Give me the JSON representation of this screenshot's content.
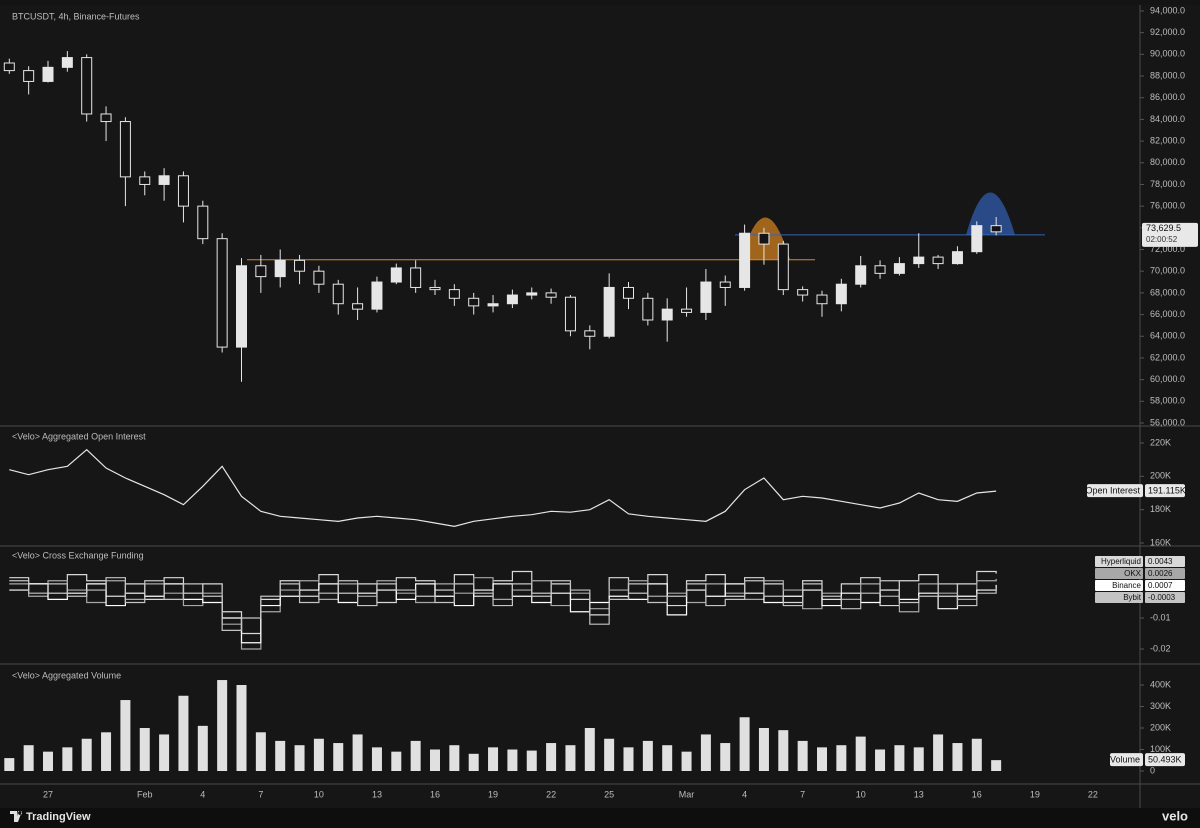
{
  "chart_data": [
    {
      "type": "candlestick",
      "title": "BTCUSDT, 4h, Binance-Futures",
      "categories": [
        null,
        null,
        "27",
        null,
        null,
        null,
        null,
        "Feb",
        null,
        null,
        "4",
        null,
        null,
        "7",
        null,
        null,
        "10",
        null,
        null,
        "13",
        null,
        null,
        "16",
        null,
        null,
        "19",
        null,
        null,
        "22",
        null,
        null,
        "25",
        null,
        null,
        null,
        "Mar",
        null,
        null,
        "4",
        null,
        null,
        "7",
        null,
        null,
        "10",
        null,
        null,
        "13",
        null,
        null,
        "16",
        null,
        null,
        "19",
        null,
        null,
        "22",
        null,
        null
      ],
      "open": [
        89200,
        88500,
        87500,
        88800,
        89700,
        84500,
        83800,
        78700,
        78000,
        78800,
        76000,
        73000,
        63000,
        70500,
        69500,
        71000,
        70000,
        68800,
        67000,
        66500,
        69000,
        70300,
        68500,
        68300,
        67500,
        66800,
        67000,
        67800,
        68000,
        67600,
        64500,
        64000,
        68500,
        67500,
        65500,
        66500,
        66200,
        69000,
        68500,
        73500,
        72500,
        68300,
        67800,
        67000,
        68800,
        70500,
        69800,
        70700,
        71300,
        70700,
        71800,
        74200,
        null,
        null,
        null,
        null,
        null,
        null,
        null
      ],
      "high": [
        89600,
        88900,
        89400,
        90300,
        90000,
        85200,
        84200,
        79200,
        79500,
        79200,
        76500,
        73500,
        71200,
        71500,
        72000,
        71500,
        70500,
        69200,
        68500,
        69500,
        70700,
        71000,
        69200,
        68800,
        68000,
        67800,
        68300,
        68500,
        68400,
        67800,
        65000,
        69800,
        69000,
        68000,
        67500,
        68500,
        70200,
        69600,
        74300,
        74000,
        72800,
        68600,
        68200,
        69300,
        71400,
        71000,
        71300,
        73500,
        71500,
        72300,
        74600,
        75000,
        null,
        null,
        null,
        null,
        null,
        null,
        null
      ],
      "low": [
        88200,
        86300,
        87400,
        88400,
        83800,
        82000,
        76000,
        77000,
        76500,
        74500,
        72500,
        62500,
        59800,
        68000,
        68500,
        68800,
        68000,
        66000,
        65500,
        66200,
        68800,
        68000,
        67800,
        66800,
        66000,
        66200,
        66600,
        67400,
        67000,
        64000,
        62800,
        63800,
        66500,
        65000,
        63500,
        65800,
        65500,
        66800,
        68200,
        70600,
        67800,
        67200,
        65800,
        66300,
        68500,
        69300,
        69600,
        70300,
        70200,
        70600,
        71600,
        73300,
        null,
        null,
        null,
        null,
        null,
        null,
        null
      ],
      "close": [
        88500,
        87500,
        88800,
        89700,
        84500,
        83800,
        78700,
        78000,
        78800,
        76000,
        73000,
        63000,
        70500,
        69500,
        71000,
        70000,
        68800,
        67000,
        66500,
        69000,
        70300,
        68500,
        68300,
        67500,
        66800,
        67000,
        67800,
        68000,
        67600,
        64500,
        64000,
        68500,
        67500,
        65500,
        66500,
        66200,
        69000,
        68500,
        73500,
        72500,
        68300,
        67800,
        67000,
        68800,
        70500,
        69800,
        70700,
        71300,
        70700,
        71800,
        74200,
        73629.5,
        null,
        null,
        null,
        null,
        null,
        null,
        null
      ],
      "current_label": "73,629.5",
      "countdown": "02:00:52",
      "up_color": "#e6e6e6",
      "down_color": "#141414",
      "wick_color": "#e6e6e6",
      "levels": [
        {
          "value": 71050,
          "color": "#d98a1f"
        },
        {
          "value": 73350,
          "color": "#3563b8"
        }
      ],
      "ylim": [
        55815,
        94550
      ],
      "yticks": [
        {
          "value": 56000,
          "label": "56,000.0"
        },
        {
          "value": 58000,
          "label": "58,000.0"
        },
        {
          "value": 60000,
          "label": "60,000.0"
        },
        {
          "value": 62000,
          "label": "62,000.0"
        },
        {
          "value": 64000,
          "label": "64,000.0"
        },
        {
          "value": 66000,
          "label": "66,000.0"
        },
        {
          "value": 68000,
          "label": "68,000.0"
        },
        {
          "value": 70000,
          "label": "70,000.0"
        },
        {
          "value": 72000,
          "label": "72,000.0"
        },
        {
          "value": 74000,
          "label": "74,000.0"
        },
        {
          "value": 76000,
          "label": "76,000.0"
        },
        {
          "value": 78000,
          "label": "78,000.0"
        },
        {
          "value": 80000,
          "label": "80,000.0"
        },
        {
          "value": 82000,
          "label": "82,000.0"
        },
        {
          "value": 84000,
          "label": "84,000.0"
        },
        {
          "value": 86000,
          "label": "86,000.0"
        },
        {
          "value": 88000,
          "label": "88,000.0"
        },
        {
          "value": 90000,
          "label": "90,000.0"
        },
        {
          "value": 92000,
          "label": "92,000.0"
        },
        {
          "value": 94000,
          "label": "94,000.0"
        }
      ]
    },
    {
      "type": "line",
      "title": "<Velo> Aggregated Open Interest",
      "series": [
        {
          "name": "Open Interest",
          "color": "#e6e6e6",
          "values": [
            204000,
            201000,
            204000,
            206000,
            216000,
            205000,
            199000,
            194000,
            189000,
            183000,
            194000,
            206000,
            188000,
            179000,
            176000,
            175000,
            174000,
            173000,
            175000,
            176000,
            175000,
            174000,
            172000,
            170000,
            173000,
            174500,
            176000,
            177000,
            179000,
            178500,
            180000,
            186000,
            177500,
            176000,
            175000,
            174000,
            173000,
            179000,
            192000,
            199000,
            186000,
            188000,
            187000,
            185000,
            183000,
            181000,
            184000,
            190000,
            186000,
            185000,
            190000,
            191115,
            null,
            null,
            null,
            null,
            null,
            null,
            null
          ]
        }
      ],
      "current_label": "191.115K",
      "ylim": [
        158800,
        229000
      ],
      "yticks": [
        {
          "value": 160000,
          "label": "160K"
        },
        {
          "value": 180000,
          "label": "180K"
        },
        {
          "value": 200000,
          "label": "200K"
        },
        {
          "value": 220000,
          "label": "220K"
        }
      ]
    },
    {
      "type": "line",
      "step": true,
      "title": "<Velo> Cross Exchange Funding",
      "series": [
        {
          "name": "Hyperliquid",
          "color": "#d9d9d9",
          "values": [
            0.003,
            0.001,
            -0.002,
            0.004,
            0.002,
            -0.003,
            0.001,
            -0.004,
            0.003,
            -0.002,
            0.001,
            -0.008,
            -0.015,
            -0.004,
            0.002,
            -0.003,
            0.004,
            -0.002,
            0.001,
            -0.005,
            0.003,
            0.002,
            -0.001,
            0.004,
            -0.003,
            0.002,
            0.005,
            -0.002,
            0.001,
            -0.004,
            -0.009,
            0.003,
            -0.002,
            0.004,
            -0.006,
            0.002,
            0.004,
            -0.003,
            0.003,
            0.001,
            -0.005,
            0.002,
            -0.004,
            0.001,
            0.003,
            -0.006,
            0.002,
            0.004,
            -0.003,
            0.001,
            0.005,
            0.0043,
            null,
            null,
            null,
            null,
            null,
            null,
            null
          ]
        },
        {
          "name": "OKX",
          "color": "#a8a8a8",
          "values": [
            0.001,
            -0.003,
            0.002,
            -0.001,
            -0.005,
            0.002,
            -0.004,
            0.001,
            -0.002,
            -0.006,
            -0.002,
            -0.012,
            -0.02,
            -0.008,
            -0.001,
            0.002,
            -0.004,
            0.001,
            -0.003,
            0.002,
            -0.002,
            -0.005,
            0.001,
            -0.002,
            0.003,
            -0.004,
            -0.001,
            0.002,
            -0.006,
            -0.002,
            -0.007,
            -0.001,
            0.002,
            -0.003,
            -0.002,
            -0.005,
            0.001,
            -0.002,
            -0.004,
            0.002,
            -0.001,
            -0.007,
            -0.002,
            -0.004,
            0.001,
            -0.003,
            -0.008,
            0.001,
            -0.002,
            -0.004,
            0.002,
            0.0026,
            null,
            null,
            null,
            null,
            null,
            null,
            null
          ]
        },
        {
          "name": "Binance",
          "color": "#ffffff",
          "values": [
            -0.001,
            0.001,
            -0.004,
            -0.002,
            0.001,
            -0.006,
            -0.002,
            -0.003,
            0.001,
            -0.004,
            -0.005,
            -0.01,
            -0.018,
            -0.006,
            -0.003,
            -0.001,
            0.001,
            -0.005,
            -0.002,
            -0.001,
            -0.004,
            0.001,
            -0.003,
            -0.006,
            -0.001,
            0.001,
            -0.003,
            -0.005,
            -0.002,
            -0.008,
            -0.005,
            -0.003,
            -0.004,
            0.001,
            -0.009,
            -0.001,
            -0.003,
            0.001,
            -0.002,
            -0.005,
            -0.003,
            -0.001,
            -0.006,
            -0.002,
            -0.005,
            -0.001,
            -0.004,
            -0.002,
            -0.007,
            -0.003,
            -0.001,
            0.0007,
            null,
            null,
            null,
            null,
            null,
            null,
            null
          ]
        },
        {
          "name": "Bybit",
          "color": "#c4c4c4",
          "values": [
            0.002,
            -0.002,
            0.001,
            -0.003,
            -0.001,
            0.003,
            -0.005,
            0.002,
            -0.004,
            0.001,
            -0.003,
            -0.014,
            -0.01,
            -0.003,
            0.001,
            -0.005,
            -0.002,
            0.002,
            -0.006,
            0.001,
            -0.001,
            -0.003,
            -0.005,
            0.001,
            -0.002,
            -0.006,
            0.001,
            -0.003,
            0.002,
            -0.001,
            -0.012,
            -0.004,
            0.001,
            -0.005,
            -0.003,
            0.001,
            -0.006,
            -0.004,
            0.002,
            -0.003,
            -0.006,
            0.001,
            -0.003,
            -0.007,
            -0.002,
            0.002,
            -0.005,
            -0.003,
            0.001,
            -0.006,
            -0.002,
            -0.0003,
            null,
            null,
            null,
            null,
            null,
            null,
            null
          ]
        }
      ],
      "ylim": [
        -0.0242,
        0.0129
      ],
      "yticks": [
        -0.02,
        -0.01
      ]
    },
    {
      "type": "bar",
      "title": "<Velo> Aggregated Volume",
      "series": [
        {
          "name": "Volume",
          "color": "#e0e0e0",
          "values": [
            60000,
            120000,
            90000,
            110000,
            150000,
            180000,
            330000,
            200000,
            170000,
            350000,
            210000,
            423000,
            400000,
            180000,
            140000,
            120000,
            150000,
            130000,
            170000,
            110000,
            90000,
            140000,
            100000,
            120000,
            80000,
            110000,
            100000,
            95000,
            130000,
            120000,
            200000,
            150000,
            110000,
            140000,
            120000,
            90000,
            170000,
            130000,
            250000,
            200000,
            190000,
            140000,
            110000,
            120000,
            160000,
            100000,
            120000,
            110000,
            170000,
            130000,
            150000,
            50493,
            null,
            null,
            null,
            null,
            null,
            null,
            null
          ]
        }
      ],
      "current_label": "50.493K",
      "ylim": [
        -55800,
        493000
      ],
      "yticks": [
        0,
        {
          "value": 100000,
          "label": "100K"
        },
        {
          "value": 200000,
          "label": "200K"
        },
        {
          "value": 300000,
          "label": "300K"
        },
        {
          "value": 400000,
          "label": "400K"
        }
      ]
    }
  ],
  "branding": {
    "platform": "TradingView",
    "watermark": "velo"
  }
}
